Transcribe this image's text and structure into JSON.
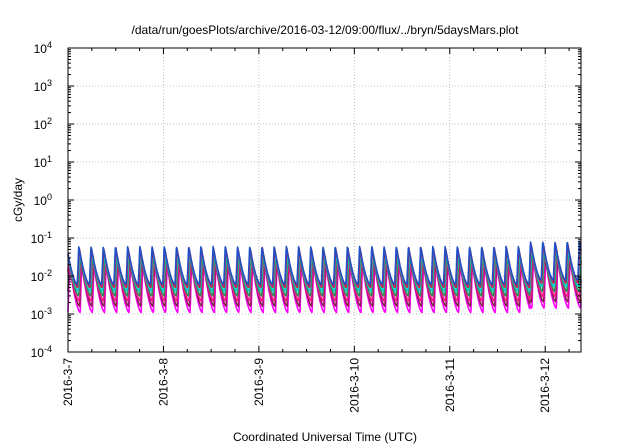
{
  "chart_data": {
    "type": "line",
    "title": "/data/run/goesPlots/archive/2016-03-12/09:00/flux/../bryn/5daysMars.plot",
    "xlabel": "Coordinated Universal Time (UTC)",
    "ylabel": "cGy/day",
    "y_scale": "log",
    "ylim": [
      0.0001,
      10000
    ],
    "y_ticks": [
      {
        "value": 0.0001,
        "base": "10",
        "exp": "-4"
      },
      {
        "value": 0.001,
        "base": "10",
        "exp": "-3"
      },
      {
        "value": 0.01,
        "base": "10",
        "exp": "-2"
      },
      {
        "value": 0.1,
        "base": "10",
        "exp": "-1"
      },
      {
        "value": 1,
        "base": "10",
        "exp": "0"
      },
      {
        "value": 10,
        "base": "10",
        "exp": "1"
      },
      {
        "value": 100,
        "base": "10",
        "exp": "2"
      },
      {
        "value": 1000,
        "base": "10",
        "exp": "3"
      },
      {
        "value": 10000,
        "base": "10",
        "exp": "4"
      }
    ],
    "xlim": [
      "2016-03-07T00:00",
      "2016-03-12T09:00"
    ],
    "x_ticks": [
      {
        "value": "2016-03-07T00:00",
        "label": "2016-3-7"
      },
      {
        "value": "2016-03-08T00:00",
        "label": "2016-3-8"
      },
      {
        "value": "2016-03-09T00:00",
        "label": "2016-3-9"
      },
      {
        "value": "2016-03-10T00:00",
        "label": "2016-3-10"
      },
      {
        "value": "2016-03-11T00:00",
        "label": "2016-3-11"
      },
      {
        "value": "2016-03-12T00:00",
        "label": "2016-3-12"
      }
    ],
    "grid": true,
    "cycle_hours": 3.07,
    "series": [
      {
        "color": "#ff00ff",
        "peak": 0.02,
        "trough": 0.0011
      },
      {
        "color": "#8b2252",
        "peak": 0.025,
        "trough": 0.0016
      },
      {
        "color": "#ff1493",
        "peak": 0.03,
        "trough": 0.0022
      },
      {
        "color": "#2e8b57",
        "peak": 0.035,
        "trough": 0.003
      },
      {
        "color": "#00ced1",
        "peak": 0.045,
        "trough": 0.004
      },
      {
        "color": "#cc2244",
        "peak": 0.055,
        "trough": 0.005
      },
      {
        "color": "#1e50c8",
        "peak": 0.06,
        "trough": 0.006
      }
    ]
  }
}
